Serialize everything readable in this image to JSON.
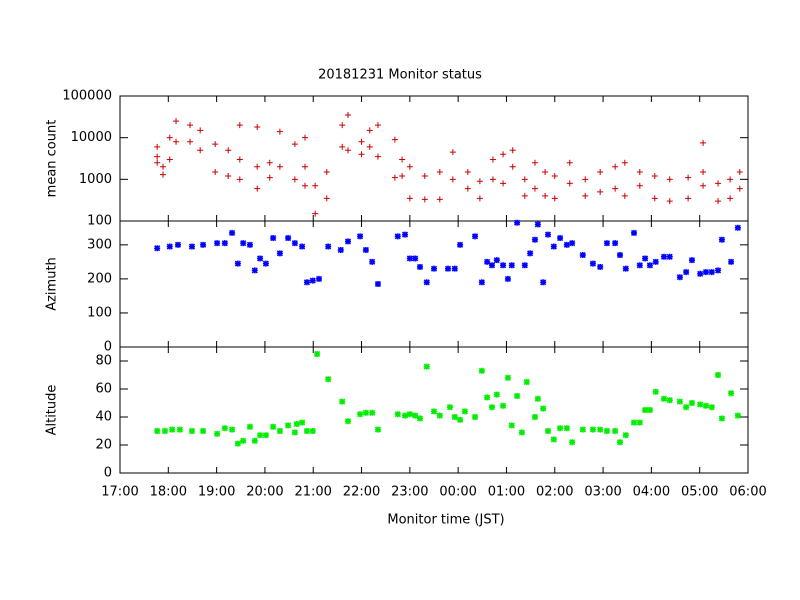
{
  "chart_data": [
    {
      "type": "scatter",
      "title": "20181231 Monitor status",
      "ylabel": "mean count",
      "log": true,
      "color": "#cc0000",
      "marker": "plus",
      "xlim": [
        17,
        30
      ],
      "ylim": [
        100,
        100000
      ],
      "yticks": [
        100,
        1000,
        10000,
        100000
      ],
      "x": [
        17.77,
        17.77,
        17.77,
        17.89,
        17.89,
        18.03,
        18.03,
        18.16,
        18.16,
        18.45,
        18.45,
        18.66,
        18.66,
        18.97,
        18.97,
        19.24,
        19.24,
        19.48,
        19.48,
        19.48,
        19.84,
        19.84,
        19.84,
        20.1,
        20.1,
        20.31,
        20.31,
        20.62,
        20.62,
        20.83,
        20.83,
        20.83,
        21.04,
        21.04,
        21.28,
        21.28,
        21.6,
        21.6,
        21.72,
        21.72,
        22.0,
        22.0,
        22.17,
        22.17,
        22.34,
        22.34,
        22.69,
        22.69,
        22.84,
        22.84,
        23.0,
        23.0,
        23.31,
        23.31,
        23.62,
        23.62,
        23.89,
        23.89,
        24.2,
        24.2,
        24.45,
        24.45,
        24.72,
        24.72,
        24.93,
        24.93,
        25.13,
        25.13,
        25.38,
        25.38,
        25.59,
        25.59,
        25.8,
        25.8,
        26.0,
        26.0,
        26.31,
        26.31,
        26.63,
        26.63,
        26.94,
        26.94,
        27.25,
        27.25,
        27.45,
        27.45,
        27.76,
        27.76,
        28.07,
        28.07,
        28.38,
        28.38,
        28.76,
        28.76,
        29.07,
        29.07,
        29.07,
        29.38,
        29.38,
        29.63,
        29.63,
        29.83,
        29.83
      ],
      "values": [
        3500,
        2500,
        6000,
        1300,
        2000,
        10000,
        3000,
        25000,
        8000,
        20000,
        8000,
        15000,
        5000,
        7000,
        1500,
        5000,
        1200,
        20000,
        3000,
        1000,
        18000,
        2000,
        600,
        2500,
        1100,
        14000,
        2000,
        7000,
        1000,
        10000,
        2000,
        700,
        700,
        150,
        1500,
        350,
        20000,
        6000,
        35000,
        5000,
        8000,
        4000,
        15000,
        6000,
        20000,
        3500,
        9000,
        1100,
        3000,
        1200,
        2000,
        350,
        1200,
        330,
        1500,
        330,
        4500,
        1000,
        1500,
        600,
        900,
        350,
        3000,
        1000,
        4000,
        800,
        5000,
        2000,
        1000,
        400,
        2500,
        600,
        1500,
        400,
        1200,
        350,
        2500,
        800,
        1000,
        400,
        1500,
        500,
        2000,
        600,
        2500,
        400,
        1500,
        700,
        1200,
        350,
        1000,
        300,
        1100,
        350,
        7500,
        1500,
        700,
        800,
        300,
        1000,
        350,
        1500,
        600
      ]
    },
    {
      "type": "scatter",
      "ylabel": "Azimuth",
      "color": "#0000ff",
      "marker": "star",
      "xlim": [
        17,
        30
      ],
      "ylim": [
        0,
        370
      ],
      "yticks": [
        0,
        100,
        200,
        300
      ],
      "x": [
        17.77,
        18.03,
        18.2,
        18.49,
        18.72,
        19.01,
        19.17,
        19.32,
        19.44,
        19.55,
        19.69,
        19.79,
        19.9,
        20.02,
        20.17,
        20.31,
        20.48,
        20.62,
        20.77,
        20.87,
        20.99,
        21.12,
        21.31,
        21.57,
        21.72,
        21.97,
        22.09,
        22.22,
        22.34,
        22.75,
        22.9,
        23.0,
        23.11,
        23.21,
        23.35,
        23.5,
        23.79,
        23.93,
        24.04,
        24.35,
        24.49,
        24.6,
        24.7,
        24.8,
        24.93,
        25.03,
        25.11,
        25.22,
        25.38,
        25.49,
        25.59,
        25.65,
        25.76,
        25.86,
        25.98,
        26.11,
        26.25,
        26.36,
        26.58,
        26.79,
        26.94,
        27.08,
        27.25,
        27.35,
        27.47,
        27.64,
        27.76,
        27.87,
        27.97,
        28.09,
        28.26,
        28.38,
        28.59,
        28.72,
        28.84,
        29.01,
        29.13,
        29.25,
        29.38,
        29.46,
        29.65,
        29.79
      ],
      "values": [
        290,
        295,
        300,
        295,
        300,
        305,
        305,
        335,
        245,
        305,
        300,
        225,
        260,
        245,
        320,
        275,
        320,
        305,
        295,
        190,
        195,
        200,
        295,
        285,
        310,
        325,
        285,
        250,
        185,
        325,
        330,
        260,
        260,
        235,
        190,
        230,
        230,
        230,
        300,
        325,
        190,
        250,
        240,
        255,
        240,
        200,
        240,
        365,
        240,
        275,
        315,
        360,
        190,
        330,
        295,
        320,
        300,
        305,
        270,
        245,
        235,
        305,
        305,
        270,
        230,
        335,
        240,
        260,
        240,
        250,
        265,
        265,
        205,
        220,
        255,
        215,
        220,
        220,
        225,
        315,
        250,
        350
      ]
    },
    {
      "type": "scatter",
      "ylabel": "Altitude",
      "xlabel": "Monitor time (JST)",
      "color": "#00ee00",
      "marker": "star",
      "xlim": [
        17,
        30
      ],
      "ylim": [
        0,
        90
      ],
      "yticks": [
        0,
        20,
        40,
        60,
        80
      ],
      "xticks": [
        {
          "value": 17,
          "label": "17:00"
        },
        {
          "value": 18,
          "label": "18:00"
        },
        {
          "value": 19,
          "label": "19:00"
        },
        {
          "value": 20,
          "label": "20:00"
        },
        {
          "value": 21,
          "label": "21:00"
        },
        {
          "value": 22,
          "label": "22:00"
        },
        {
          "value": 23,
          "label": "23:00"
        },
        {
          "value": 24,
          "label": "00:00"
        },
        {
          "value": 25,
          "label": "01:00"
        },
        {
          "value": 26,
          "label": "02:00"
        },
        {
          "value": 27,
          "label": "03:00"
        },
        {
          "value": 28,
          "label": "04:00"
        },
        {
          "value": 29,
          "label": "05:00"
        },
        {
          "value": 30,
          "label": "06:00"
        }
      ],
      "x": [
        17.77,
        17.93,
        18.08,
        18.24,
        18.49,
        18.72,
        19.01,
        19.17,
        19.32,
        19.44,
        19.55,
        19.69,
        19.79,
        19.9,
        20.02,
        20.17,
        20.31,
        20.48,
        20.62,
        20.66,
        20.77,
        20.87,
        20.99,
        21.08,
        21.31,
        21.6,
        21.72,
        21.97,
        22.09,
        22.22,
        22.34,
        22.75,
        22.9,
        23.0,
        23.11,
        23.21,
        23.35,
        23.5,
        23.62,
        23.83,
        23.93,
        24.04,
        24.14,
        24.35,
        24.49,
        24.6,
        24.7,
        24.8,
        24.93,
        25.03,
        25.11,
        25.22,
        25.32,
        25.42,
        25.59,
        25.65,
        25.76,
        25.86,
        25.98,
        26.11,
        26.25,
        26.36,
        26.58,
        26.79,
        26.94,
        27.08,
        27.25,
        27.35,
        27.47,
        27.64,
        27.76,
        27.87,
        27.97,
        28.09,
        28.26,
        28.38,
        28.59,
        28.72,
        28.84,
        29.01,
        29.13,
        29.25,
        29.38,
        29.46,
        29.65,
        29.79
      ],
      "values": [
        30,
        30,
        31,
        31,
        30,
        30,
        28,
        32,
        31,
        21,
        23,
        33,
        23,
        27,
        27,
        33,
        30,
        34,
        29,
        35,
        36,
        30,
        30,
        85,
        67,
        51,
        37,
        42,
        43,
        43,
        31,
        42,
        41,
        42,
        41,
        39,
        76,
        44,
        41,
        47,
        40,
        38,
        44,
        40,
        73,
        54,
        47,
        56,
        48,
        68,
        34,
        55,
        29,
        65,
        40,
        53,
        46,
        30,
        24,
        32,
        32,
        22,
        31,
        31,
        31,
        30,
        30,
        22,
        27,
        36,
        36,
        45,
        45,
        58,
        53,
        52,
        51,
        47,
        50,
        49,
        48,
        47,
        70,
        39,
        57,
        41
      ]
    }
  ]
}
